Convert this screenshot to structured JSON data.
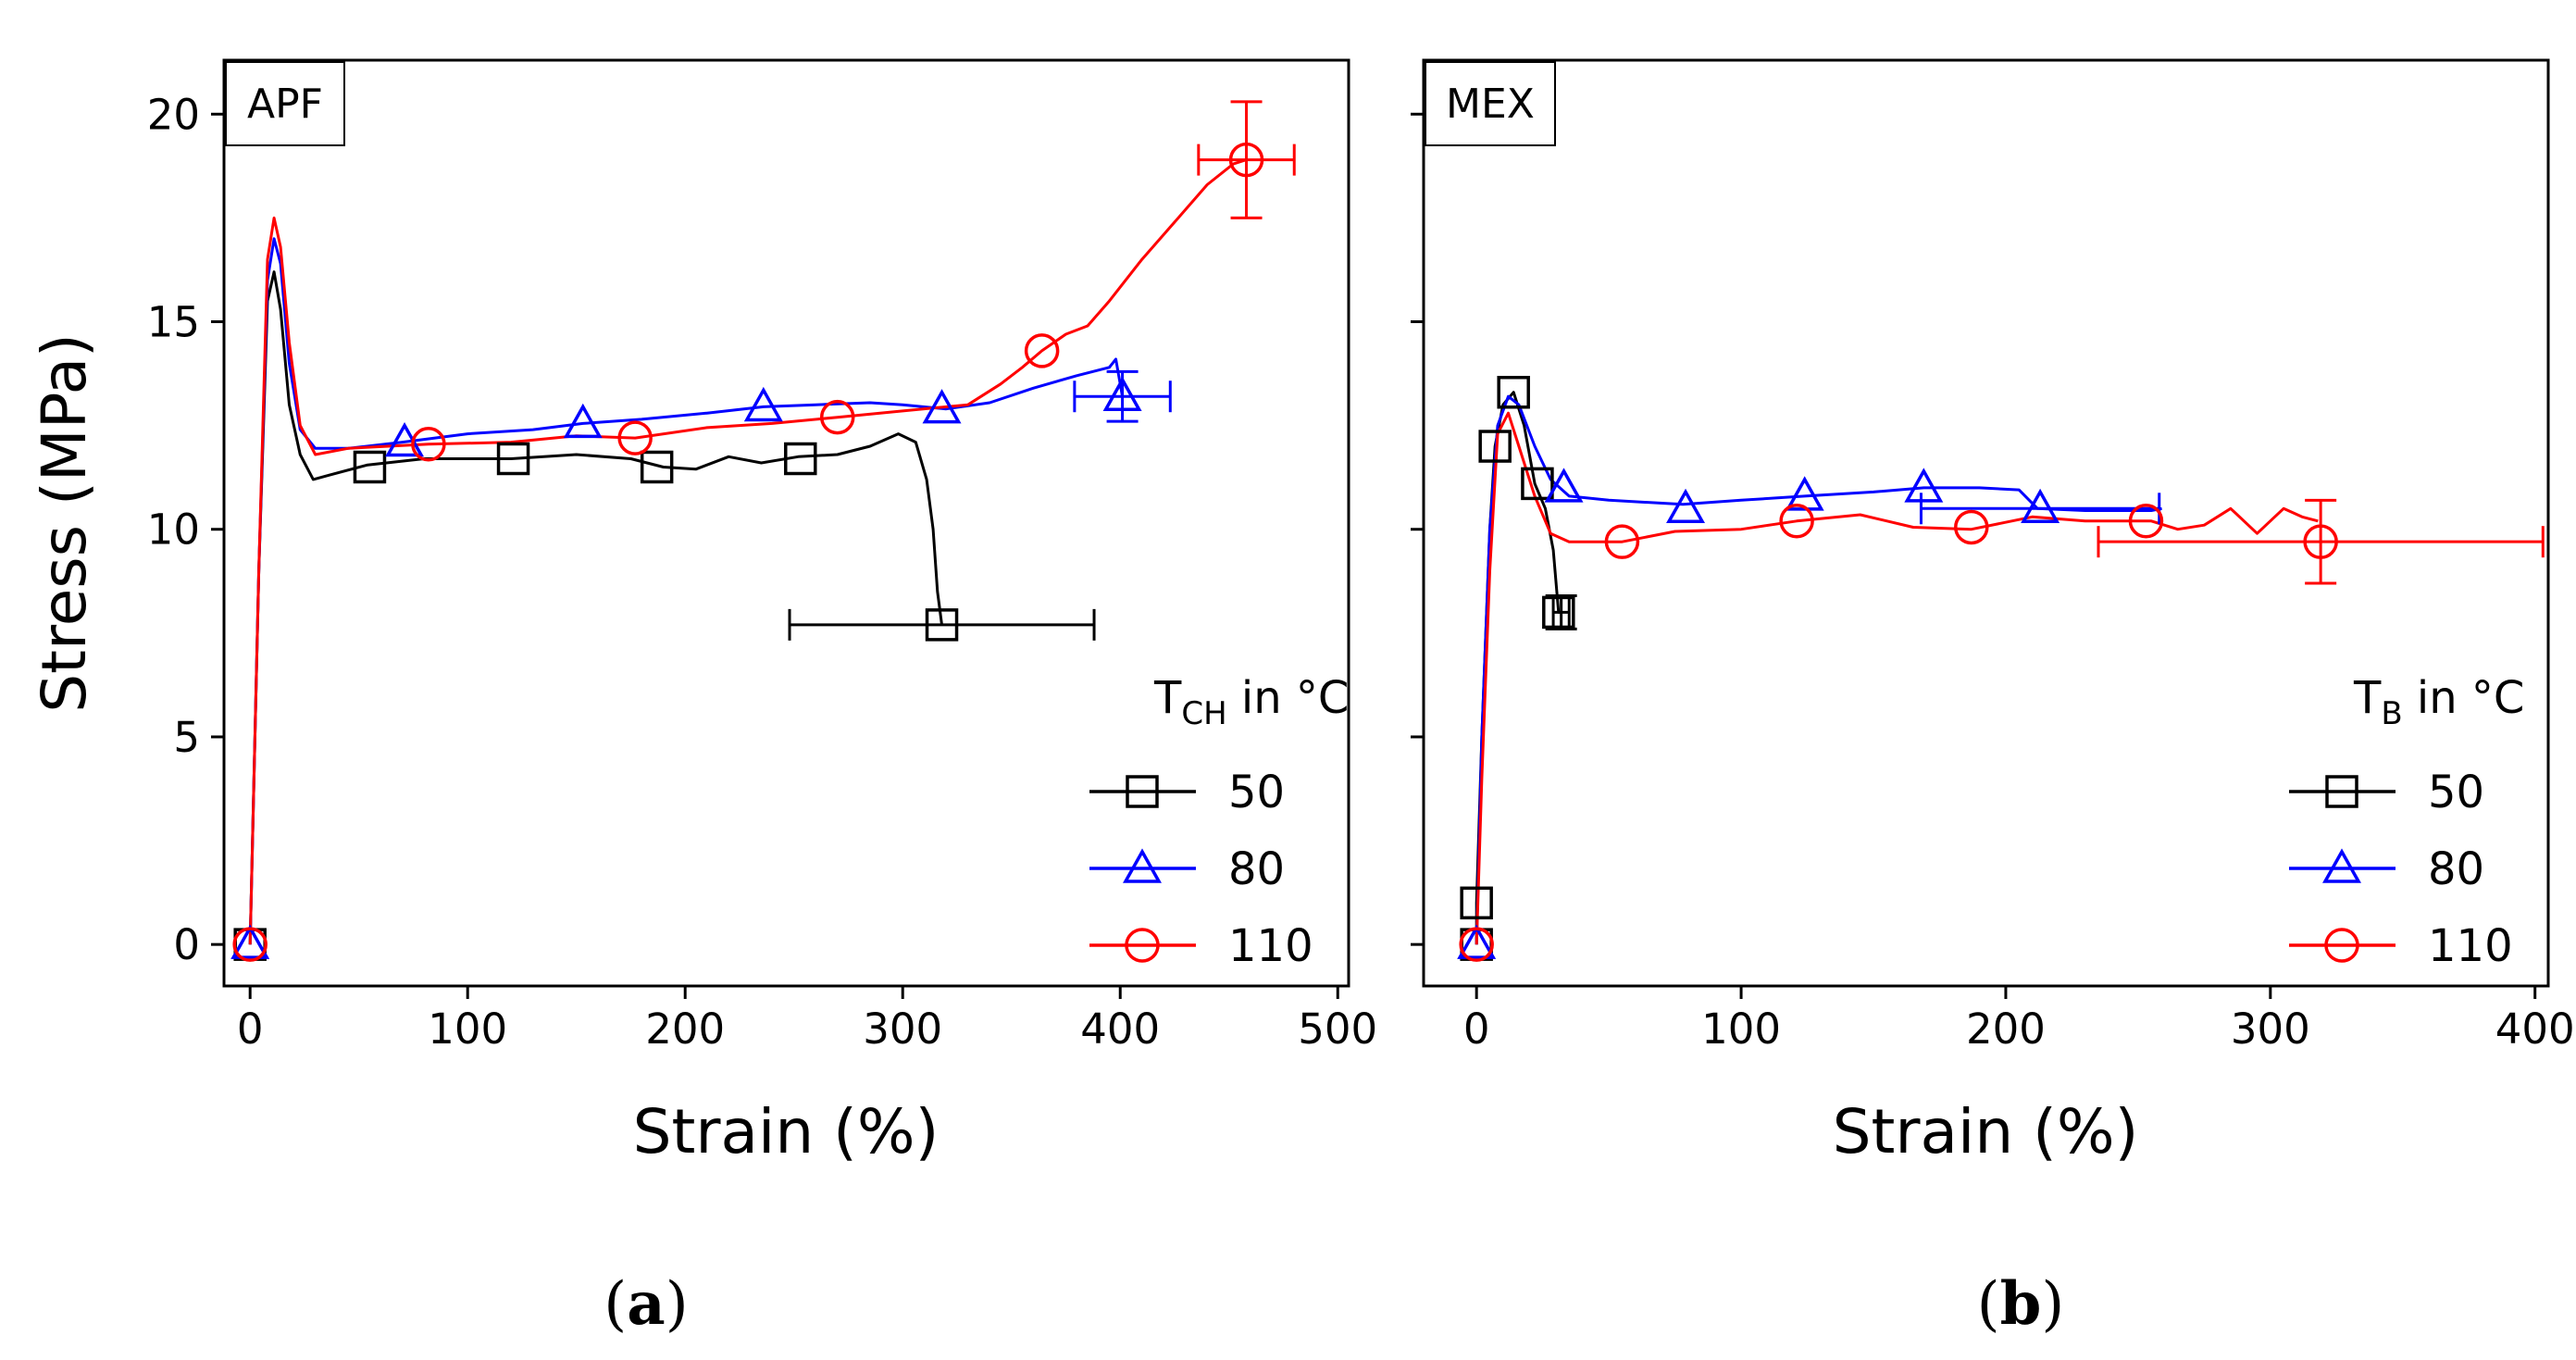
{
  "chart_data": [
    {
      "type": "line",
      "panel_label": "APF",
      "caption": "a",
      "xlabel": "Strain (%)",
      "ylabel": "Stress (MPa)",
      "xlim": [
        -12,
        505
      ],
      "ylim": [
        -1,
        21.3
      ],
      "xticks": [
        0,
        100,
        200,
        300,
        400,
        500
      ],
      "yticks": [
        0,
        5,
        10,
        15,
        20
      ],
      "grid": false,
      "legend": {
        "title": "T",
        "title_sub": "CH",
        "title_suffix": " in °C",
        "position": "bottom-right"
      },
      "series": [
        {
          "name": "50",
          "color": "#000000",
          "marker": "square",
          "curve": [
            [
              0,
              0
            ],
            [
              4,
              9
            ],
            [
              8,
              15.5
            ],
            [
              11,
              16.2
            ],
            [
              14,
              15.3
            ],
            [
              18,
              13
            ],
            [
              23,
              11.8
            ],
            [
              29,
              11.2
            ],
            [
              36,
              11.3
            ],
            [
              54,
              11.55
            ],
            [
              80,
              11.7
            ],
            [
              120,
              11.7
            ],
            [
              150,
              11.8
            ],
            [
              175,
              11.7
            ],
            [
              190,
              11.5
            ],
            [
              205,
              11.45
            ],
            [
              220,
              11.75
            ],
            [
              235,
              11.6
            ],
            [
              252,
              11.75
            ],
            [
              270,
              11.8
            ],
            [
              285,
              12
            ],
            [
              298,
              12.3
            ],
            [
              306,
              12.1
            ],
            [
              311,
              11.2
            ],
            [
              314,
              10
            ],
            [
              316,
              8.5
            ],
            [
              318,
              7.7
            ]
          ],
          "markers": [
            [
              0,
              0
            ],
            [
              55,
              11.5
            ],
            [
              121,
              11.7
            ],
            [
              187,
              11.5
            ],
            [
              253,
              11.7
            ],
            [
              318,
              7.7
            ]
          ],
          "errorbars": [
            {
              "x": 318,
              "y": 7.7,
              "xerr": 70,
              "yerr": 0
            }
          ]
        },
        {
          "name": "80",
          "color": "#0000ff",
          "marker": "triangle",
          "curve": [
            [
              0,
              0
            ],
            [
              4,
              9
            ],
            [
              8,
              16
            ],
            [
              11,
              17
            ],
            [
              14,
              16.4
            ],
            [
              18,
              14
            ],
            [
              23,
              12.4
            ],
            [
              30,
              11.95
            ],
            [
              45,
              11.95
            ],
            [
              70,
              12.1
            ],
            [
              100,
              12.3
            ],
            [
              130,
              12.4
            ],
            [
              153,
              12.55
            ],
            [
              180,
              12.65
            ],
            [
              210,
              12.8
            ],
            [
              236,
              12.95
            ],
            [
              260,
              13
            ],
            [
              285,
              13.05
            ],
            [
              300,
              13
            ],
            [
              320,
              12.9
            ],
            [
              340,
              13.05
            ],
            [
              360,
              13.4
            ],
            [
              380,
              13.7
            ],
            [
              395,
              13.9
            ],
            [
              398,
              14.1
            ],
            [
              401,
              13.2
            ]
          ],
          "markers": [
            [
              0,
              0
            ],
            [
              71,
              12.1
            ],
            [
              153,
              12.55
            ],
            [
              236,
              12.95
            ],
            [
              318,
              12.9
            ],
            [
              401,
              13.2
            ]
          ],
          "errorbars": [
            {
              "x": 401,
              "y": 13.2,
              "xerr": 22,
              "yerr": 0.6
            }
          ]
        },
        {
          "name": "110",
          "color": "#ff0000",
          "marker": "circle",
          "curve": [
            [
              0,
              0
            ],
            [
              4,
              9
            ],
            [
              8,
              16.5
            ],
            [
              11,
              17.5
            ],
            [
              14,
              16.8
            ],
            [
              18,
              14.5
            ],
            [
              23,
              12.5
            ],
            [
              30,
              11.8
            ],
            [
              45,
              11.95
            ],
            [
              82,
              12.05
            ],
            [
              120,
              12.1
            ],
            [
              150,
              12.25
            ],
            [
              177,
              12.2
            ],
            [
              210,
              12.45
            ],
            [
              240,
              12.55
            ],
            [
              270,
              12.7
            ],
            [
              300,
              12.85
            ],
            [
              330,
              13
            ],
            [
              345,
              13.5
            ],
            [
              355,
              13.9
            ],
            [
              364,
              14.3
            ],
            [
              375,
              14.7
            ],
            [
              385,
              14.9
            ],
            [
              395,
              15.5
            ],
            [
              410,
              16.5
            ],
            [
              425,
              17.4
            ],
            [
              440,
              18.3
            ],
            [
              452,
              18.8
            ],
            [
              458,
              18.9
            ]
          ],
          "markers": [
            [
              0,
              0
            ],
            [
              82,
              12.05
            ],
            [
              177,
              12.2
            ],
            [
              270,
              12.7
            ],
            [
              364,
              14.3
            ],
            [
              458,
              18.9
            ]
          ],
          "errorbars": [
            {
              "x": 458,
              "y": 18.9,
              "xerr": 22,
              "yerr": 1.4
            }
          ]
        }
      ]
    },
    {
      "type": "line",
      "panel_label": "MEX",
      "caption": "b",
      "xlabel": "Strain (%)",
      "ylabel": "",
      "xlim": [
        -20,
        405
      ],
      "ylim": [
        -1,
        21.3
      ],
      "xticks": [
        0,
        100,
        200,
        300,
        400
      ],
      "yticks": [
        0,
        5,
        10,
        15,
        20
      ],
      "grid": false,
      "legend": {
        "title": "T",
        "title_sub": "B",
        "title_suffix": " in °C",
        "position": "bottom-right"
      },
      "series": [
        {
          "name": "50",
          "color": "#000000",
          "marker": "square",
          "curve": [
            [
              0,
              0
            ],
            [
              0,
              1
            ],
            [
              2,
              5
            ],
            [
              5,
              10
            ],
            [
              7,
              12
            ],
            [
              10,
              13
            ],
            [
              14,
              13.3
            ],
            [
              18,
              12.5
            ],
            [
              22,
              11.1
            ],
            [
              26,
              10.5
            ],
            [
              29,
              9.5
            ],
            [
              31,
              8
            ],
            [
              32,
              8
            ]
          ],
          "markers": [
            [
              0,
              0
            ],
            [
              0,
              1
            ],
            [
              7,
              12
            ],
            [
              14,
              13.3
            ],
            [
              23,
              11.1
            ],
            [
              31,
              8
            ]
          ],
          "errorbars": [
            {
              "x": 32,
              "y": 8,
              "xerr": 3,
              "yerr": 0.4
            }
          ]
        },
        {
          "name": "80",
          "color": "#0000ff",
          "marker": "triangle",
          "curve": [
            [
              0,
              0
            ],
            [
              2,
              5
            ],
            [
              5,
              10
            ],
            [
              8,
              12.5
            ],
            [
              12,
              13.2
            ],
            [
              16,
              13
            ],
            [
              22,
              12
            ],
            [
              28,
              11.2
            ],
            [
              35,
              10.8
            ],
            [
              50,
              10.7
            ],
            [
              78,
              10.6
            ],
            [
              100,
              10.7
            ],
            [
              124,
              10.8
            ],
            [
              150,
              10.9
            ],
            [
              169,
              11
            ],
            [
              190,
              11
            ],
            [
              205,
              10.95
            ],
            [
              212,
              10.5
            ],
            [
              230,
              10.45
            ],
            [
              255,
              10.45
            ],
            [
              259,
              10.5
            ]
          ],
          "markers": [
            [
              0,
              0
            ],
            [
              33,
              11
            ],
            [
              79,
              10.5
            ],
            [
              124,
              10.8
            ],
            [
              169,
              11
            ],
            [
              213,
              10.5
            ]
          ],
          "errorbars": [
            {
              "x": 213,
              "y": 10.5,
              "xerr": 45,
              "yerr": 0
            }
          ]
        },
        {
          "name": "110",
          "color": "#ff0000",
          "marker": "circle",
          "curve": [
            [
              0,
              0
            ],
            [
              2,
              4
            ],
            [
              5,
              9
            ],
            [
              8,
              12.3
            ],
            [
              12,
              12.8
            ],
            [
              16,
              12
            ],
            [
              22,
              10.8
            ],
            [
              28,
              9.9
            ],
            [
              35,
              9.7
            ],
            [
              55,
              9.7
            ],
            [
              75,
              9.95
            ],
            [
              100,
              10
            ],
            [
              121,
              10.2
            ],
            [
              145,
              10.35
            ],
            [
              165,
              10.05
            ],
            [
              187,
              10
            ],
            [
              210,
              10.3
            ],
            [
              230,
              10.2
            ],
            [
              255,
              10.2
            ],
            [
              265,
              10
            ],
            [
              275,
              10.1
            ],
            [
              285,
              10.5
            ],
            [
              295,
              9.9
            ],
            [
              305,
              10.5
            ],
            [
              312,
              10.3
            ],
            [
              318,
              10.2
            ]
          ],
          "markers": [
            [
              0,
              0
            ],
            [
              55,
              9.7
            ],
            [
              121,
              10.2
            ],
            [
              187,
              10.05
            ],
            [
              253,
              10.2
            ],
            [
              319,
              9.7
            ]
          ],
          "errorbars": [
            {
              "x": 319,
              "y": 9.7,
              "xerr": 84,
              "yerr": 1.0
            }
          ]
        }
      ]
    }
  ]
}
